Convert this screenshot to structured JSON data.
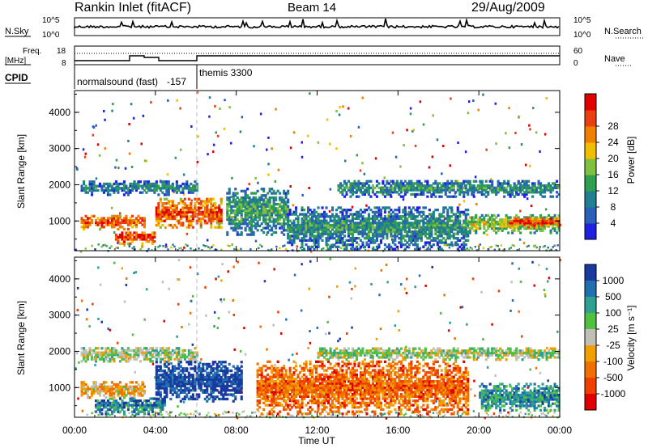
{
  "header": {
    "title": "Rankin Inlet (fitACF)",
    "beam": "Beam 14",
    "date": "29/Aug/2009"
  },
  "top_panel": {
    "left_label": "N.Sky",
    "right_label": "N.Search",
    "tick_top": "10^5",
    "tick_bottom": "10^0"
  },
  "freq_panel": {
    "label_line1": "Freq.",
    "label_line2": "[MHz]",
    "left_ticks": [
      "18",
      "8"
    ],
    "right_ticks": [
      "60",
      "0"
    ],
    "right_label": "Nave"
  },
  "cpid": {
    "label": "CPID",
    "program1": "normalsound (fast)",
    "program1_id": "-157",
    "program2": "themis 3300"
  },
  "chart_data": [
    {
      "type": "heatmap",
      "title": "",
      "ylabel": "Slant Range [km]",
      "xlabel": "",
      "ylim": [
        180,
        4600
      ],
      "yticks": [
        "1000",
        "2000",
        "3000",
        "4000"
      ],
      "colorbar_label": "Power [dB]",
      "colorbar_ticks": [
        "4",
        "8",
        "12",
        "16",
        "20",
        "24",
        "28"
      ],
      "colors": [
        "#2020e0",
        "#2a60b8",
        "#208090",
        "#30a050",
        "#80c040",
        "#f0c000",
        "#f08000",
        "#e84010",
        "#e00000"
      ],
      "bands": [
        {
          "t0": 0.3,
          "t1": 6.0,
          "r0": 1700,
          "r1": 2100,
          "level": 0.3
        },
        {
          "t0": 0.3,
          "t1": 3.5,
          "r0": 750,
          "r1": 1150,
          "level": 0.85
        },
        {
          "t0": 2.0,
          "t1": 4.0,
          "r0": 350,
          "r1": 700,
          "level": 0.9
        },
        {
          "t0": 4.0,
          "t1": 7.2,
          "r0": 800,
          "r1": 1600,
          "level": 0.85
        },
        {
          "t0": 7.5,
          "t1": 10.5,
          "r0": 600,
          "r1": 1900,
          "level": 0.4
        },
        {
          "t0": 10.5,
          "t1": 19.5,
          "r0": 200,
          "r1": 1400,
          "level": 0.35
        },
        {
          "t0": 13.0,
          "t1": 24.0,
          "r0": 1650,
          "r1": 2100,
          "level": 0.35
        },
        {
          "t0": 19.5,
          "t1": 24.0,
          "r0": 650,
          "r1": 1150,
          "level": 0.55
        },
        {
          "t0": 21.5,
          "t1": 24.0,
          "r0": 800,
          "r1": 1100,
          "level": 0.9
        }
      ]
    },
    {
      "type": "heatmap",
      "title": "",
      "ylabel": "Slant Range [km]",
      "xlabel": "Time UT",
      "ylim": [
        180,
        4600
      ],
      "yticks": [
        "1000",
        "2000",
        "3000",
        "4000"
      ],
      "xticks": [
        "00:00",
        "04:00",
        "08:00",
        "12:00",
        "16:00",
        "20:00",
        "00:00"
      ],
      "colorbar_label": "Velocity [m s⁻¹]",
      "colorbar_ticks": [
        "1000",
        "500",
        "100",
        "25",
        "-25",
        "-100",
        "-500",
        "-1000"
      ],
      "colors": [
        "#1a3aa0",
        "#2070b0",
        "#30a090",
        "#50c040",
        "#c0c0b8",
        "#f0a000",
        "#f07000",
        "#f04000",
        "#e00000"
      ],
      "bands": [
        {
          "t0": 0.3,
          "t1": 6.0,
          "r0": 1700,
          "r1": 2100,
          "level": 0.45
        },
        {
          "t0": 0.3,
          "t1": 3.5,
          "r0": 700,
          "r1": 1150,
          "level": 0.6
        },
        {
          "t0": 1.0,
          "t1": 4.5,
          "r0": 250,
          "r1": 700,
          "level": 0.2
        },
        {
          "t0": 4.0,
          "t1": 8.2,
          "r0": 600,
          "r1": 1700,
          "level": 0.05
        },
        {
          "t0": 9.0,
          "t1": 19.5,
          "r0": 250,
          "r1": 1700,
          "level": 0.75
        },
        {
          "t0": 12.0,
          "t1": 24.0,
          "r0": 1750,
          "r1": 2100,
          "level": 0.45
        },
        {
          "t0": 20.0,
          "t1": 24.0,
          "r0": 350,
          "r1": 1100,
          "level": 0.25
        }
      ]
    }
  ]
}
